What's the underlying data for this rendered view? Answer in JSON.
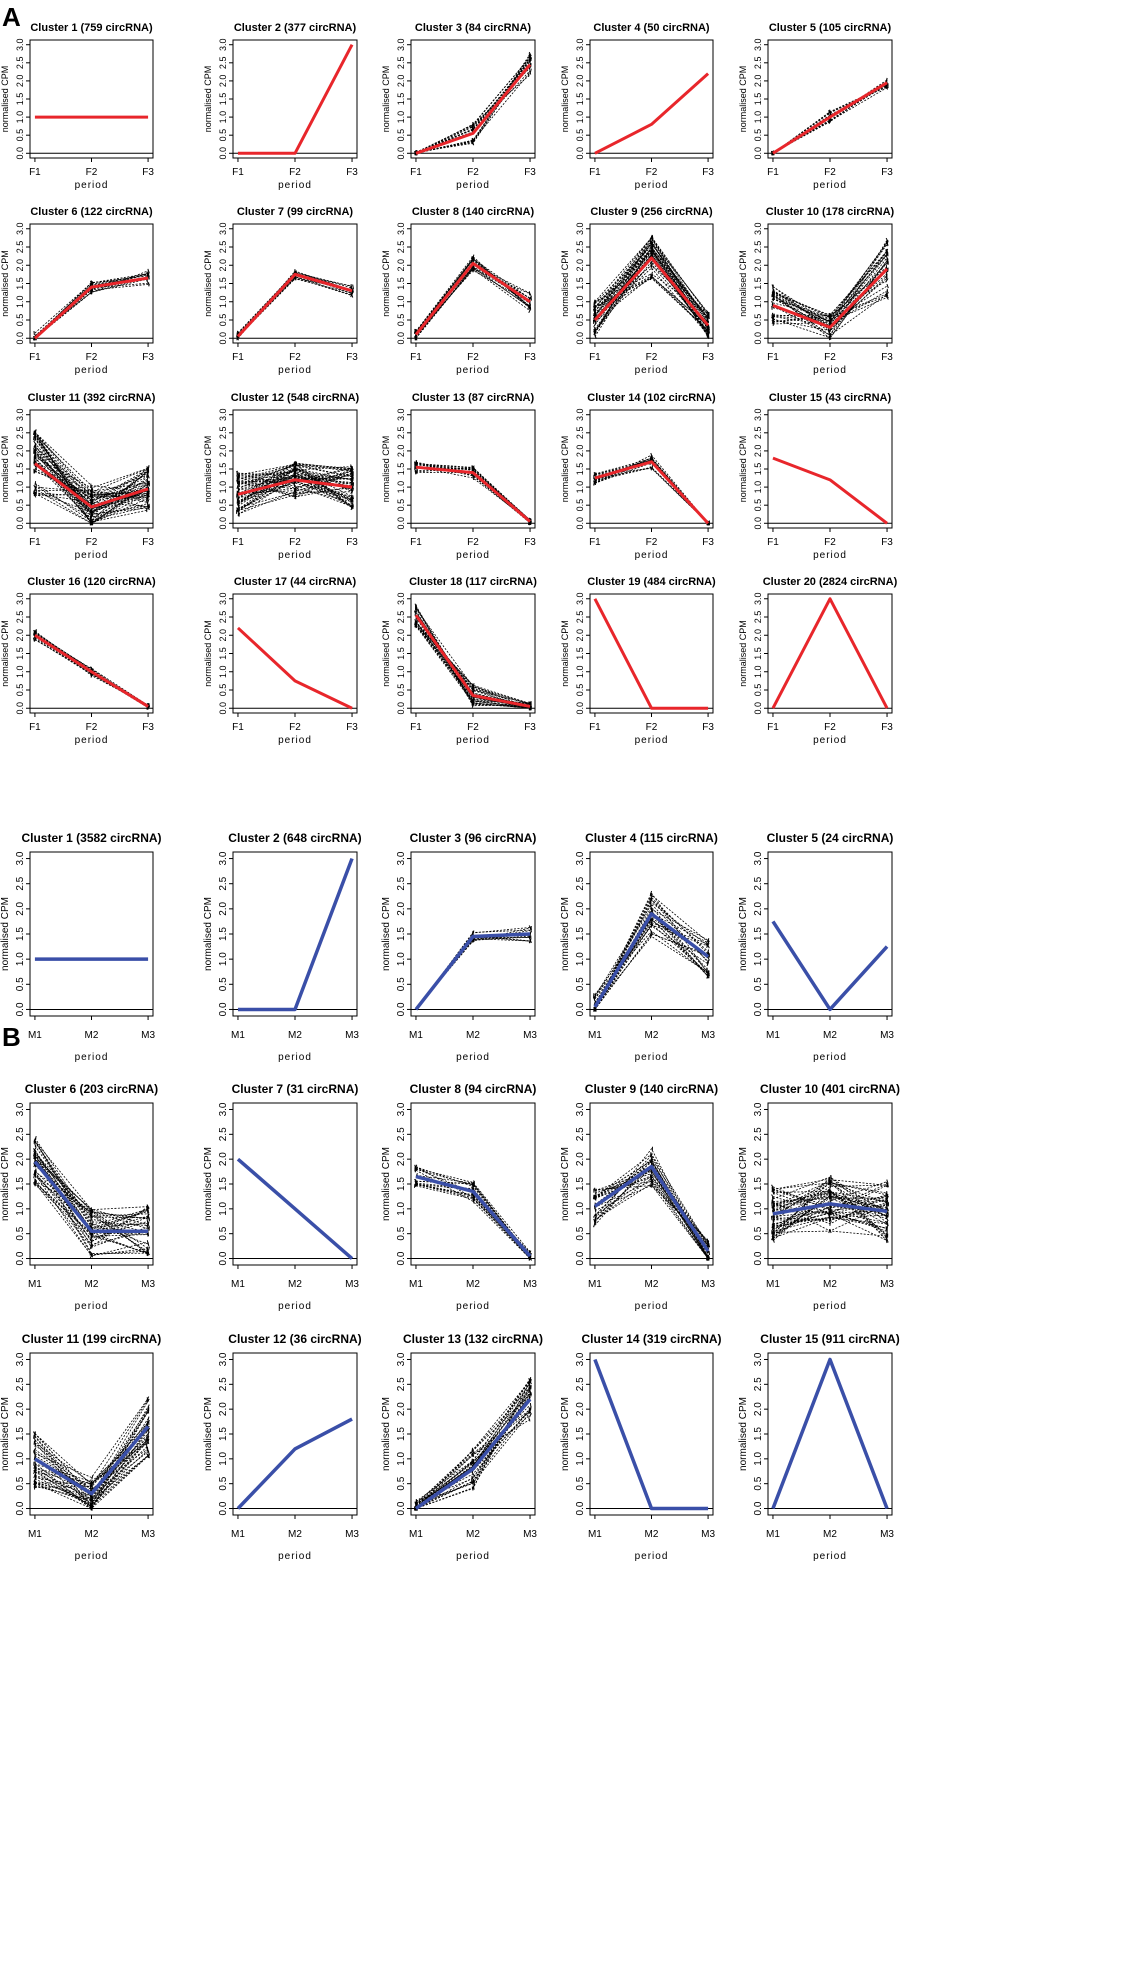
{
  "chart_data": [
    {
      "type": "line",
      "panel": "A",
      "x": [
        "F1",
        "F2",
        "F3"
      ],
      "xlabel": "period",
      "ylabel": "normalised CPM",
      "ylim": [
        0,
        3
      ],
      "yticks": [
        "0.0",
        "0.5",
        "1.0",
        "1.5",
        "2.0",
        "2.5",
        "3.0"
      ],
      "mean_color": "#e8262b",
      "profile_color": "#000000",
      "clusters": [
        {
          "title": "Cluster 1 (759 circRNA)",
          "mean": [
            1.0,
            1.0,
            1.0
          ],
          "spread": [
            0,
            0,
            0
          ],
          "jitter": 0,
          "n": 0
        },
        {
          "title": "Cluster 2 (377 circRNA)",
          "mean": [
            0.0,
            0.0,
            3.0
          ],
          "spread": [
            0,
            0,
            0
          ],
          "jitter": 0,
          "n": 0
        },
        {
          "title": "Cluster 3 (84 circRNA)",
          "mean": [
            0.0,
            0.55,
            2.45
          ],
          "spread": [
            0.03,
            0.3,
            0.3
          ],
          "jitter": 0.25,
          "n": 16
        },
        {
          "title": "Cluster 4 (50 circRNA)",
          "mean": [
            0.0,
            0.8,
            2.2
          ],
          "spread": [
            0,
            0,
            0
          ],
          "jitter": 0,
          "n": 0
        },
        {
          "title": "Cluster 5 (105 circRNA)",
          "mean": [
            0.0,
            1.0,
            1.95
          ],
          "spread": [
            0.03,
            0.15,
            0.15
          ],
          "jitter": 0.15,
          "n": 12
        },
        {
          "title": "Cluster 6 (122 circRNA)",
          "mean": [
            0.0,
            1.4,
            1.65
          ],
          "spread": [
            0.15,
            0.15,
            0.2
          ],
          "jitter": 0.2,
          "n": 14
        },
        {
          "title": "Cluster 7 (99 circRNA)",
          "mean": [
            0.05,
            1.75,
            1.3
          ],
          "spread": [
            0.1,
            0.12,
            0.15
          ],
          "jitter": 0.15,
          "n": 12
        },
        {
          "title": "Cluster 8 (140 circRNA)",
          "mean": [
            0.1,
            2.05,
            1.0
          ],
          "spread": [
            0.15,
            0.2,
            0.25
          ],
          "jitter": 0.2,
          "n": 16
        },
        {
          "title": "Cluster 9 (256 circRNA)",
          "mean": [
            0.5,
            2.2,
            0.35
          ],
          "spread": [
            0.5,
            0.6,
            0.35
          ],
          "jitter": 0.3,
          "n": 40
        },
        {
          "title": "Cluster 10 (178 circRNA)",
          "mean": [
            0.9,
            0.3,
            1.9
          ],
          "spread": [
            0.55,
            0.35,
            0.8
          ],
          "jitter": 0.35,
          "n": 30
        },
        {
          "title": "Cluster 11 (392 circRNA)",
          "mean": [
            1.65,
            0.45,
            0.95
          ],
          "spread": [
            0.9,
            0.6,
            0.6
          ],
          "jitter": 0.4,
          "n": 50
        },
        {
          "title": "Cluster 12 (548 circRNA)",
          "mean": [
            0.8,
            1.2,
            1.0
          ],
          "spread": [
            0.6,
            0.5,
            0.6
          ],
          "jitter": 0.4,
          "n": 50
        },
        {
          "title": "Cluster 13 (87 circRNA)",
          "mean": [
            1.55,
            1.4,
            0.05
          ],
          "spread": [
            0.15,
            0.15,
            0.05
          ],
          "jitter": 0.15,
          "n": 14
        },
        {
          "title": "Cluster 14 (102 circRNA)",
          "mean": [
            1.25,
            1.7,
            0.0
          ],
          "spread": [
            0.15,
            0.2,
            0.03
          ],
          "jitter": 0.15,
          "n": 14
        },
        {
          "title": "Cluster 15 (43 circRNA)",
          "mean": [
            1.8,
            1.2,
            0.0
          ],
          "spread": [
            0,
            0,
            0
          ],
          "jitter": 0,
          "n": 0
        },
        {
          "title": "Cluster 16 (120 circRNA)",
          "mean": [
            2.0,
            1.0,
            0.05
          ],
          "spread": [
            0.12,
            0.12,
            0.04
          ],
          "jitter": 0.15,
          "n": 14
        },
        {
          "title": "Cluster 17 (44 circRNA)",
          "mean": [
            2.2,
            0.75,
            0.0
          ],
          "spread": [
            0,
            0,
            0
          ],
          "jitter": 0,
          "n": 0
        },
        {
          "title": "Cluster 18 (117 circRNA)",
          "mean": [
            2.55,
            0.35,
            0.05
          ],
          "spread": [
            0.3,
            0.3,
            0.1
          ],
          "jitter": 0.3,
          "n": 24
        },
        {
          "title": "Cluster 19 (484 circRNA)",
          "mean": [
            3.0,
            0.0,
            0.0
          ],
          "spread": [
            0,
            0,
            0
          ],
          "jitter": 0,
          "n": 0
        },
        {
          "title": "Cluster 20 (2824 circRNA)",
          "mean": [
            0.0,
            3.0,
            0.0
          ],
          "spread": [
            0,
            0,
            0
          ],
          "jitter": 0,
          "n": 0
        }
      ]
    },
    {
      "type": "line",
      "panel": "B",
      "x": [
        "M1",
        "M2",
        "M3"
      ],
      "xlabel": "period",
      "ylabel": "normalised CPM",
      "ylim": [
        0,
        3
      ],
      "yticks": [
        "0.0",
        "0.5",
        "1.0",
        "1.5",
        "2.0",
        "2.5",
        "3.0"
      ],
      "mean_color": "#3a4fa8",
      "profile_color": "#000000",
      "clusters": [
        {
          "title": "Cluster 1 (3582 circRNA)",
          "mean": [
            1.0,
            1.0,
            1.0
          ],
          "spread": [
            0,
            0,
            0
          ],
          "jitter": 0,
          "n": 0
        },
        {
          "title": "Cluster 2 (648 circRNA)",
          "mean": [
            0.0,
            0.0,
            3.0
          ],
          "spread": [
            0,
            0,
            0
          ],
          "jitter": 0,
          "n": 0
        },
        {
          "title": "Cluster 3 (96 circRNA)",
          "mean": [
            0.0,
            1.45,
            1.5
          ],
          "spread": [
            0.02,
            0.12,
            0.15
          ],
          "jitter": 0.15,
          "n": 12
        },
        {
          "title": "Cluster 4 (115 circRNA)",
          "mean": [
            0.05,
            1.9,
            1.05
          ],
          "spread": [
            0.25,
            0.45,
            0.4
          ],
          "jitter": 0.3,
          "n": 26
        },
        {
          "title": "Cluster 5 (24 circRNA)",
          "mean": [
            1.75,
            0.0,
            1.25
          ],
          "spread": [
            0,
            0,
            0
          ],
          "jitter": 0,
          "n": 0
        },
        {
          "title": "Cluster 6 (203 circRNA)",
          "mean": [
            1.95,
            0.55,
            0.55
          ],
          "spread": [
            0.5,
            0.5,
            0.5
          ],
          "jitter": 0.35,
          "n": 36
        },
        {
          "title": "Cluster 7 (31 circRNA)",
          "mean": [
            2.0,
            1.0,
            0.0
          ],
          "spread": [
            0,
            0,
            0
          ],
          "jitter": 0,
          "n": 0
        },
        {
          "title": "Cluster 8 (94 circRNA)",
          "mean": [
            1.65,
            1.35,
            0.05
          ],
          "spread": [
            0.2,
            0.2,
            0.08
          ],
          "jitter": 0.2,
          "n": 16
        },
        {
          "title": "Cluster 9 (140 circRNA)",
          "mean": [
            1.05,
            1.85,
            0.15
          ],
          "spread": [
            0.4,
            0.4,
            0.25
          ],
          "jitter": 0.3,
          "n": 26
        },
        {
          "title": "Cluster 10 (401 circRNA)",
          "mean": [
            0.9,
            1.1,
            0.95
          ],
          "spread": [
            0.55,
            0.55,
            0.6
          ],
          "jitter": 0.4,
          "n": 48
        },
        {
          "title": "Cluster 11 (199 circRNA)",
          "mean": [
            1.0,
            0.3,
            1.65
          ],
          "spread": [
            0.6,
            0.35,
            0.6
          ],
          "jitter": 0.35,
          "n": 36
        },
        {
          "title": "Cluster 12 (36 circRNA)",
          "mean": [
            0.0,
            1.2,
            1.8
          ],
          "spread": [
            0,
            0,
            0
          ],
          "jitter": 0,
          "n": 0
        },
        {
          "title": "Cluster 13 (132 circRNA)",
          "mean": [
            0.0,
            0.8,
            2.2
          ],
          "spread": [
            0.15,
            0.4,
            0.45
          ],
          "jitter": 0.3,
          "n": 28
        },
        {
          "title": "Cluster 14 (319 circRNA)",
          "mean": [
            3.0,
            0.0,
            0.0
          ],
          "spread": [
            0,
            0,
            0
          ],
          "jitter": 0,
          "n": 0
        },
        {
          "title": "Cluster 15 (911 circRNA)",
          "mean": [
            0.0,
            3.0,
            0.0
          ],
          "spread": [
            0,
            0,
            0
          ],
          "jitter": 0,
          "n": 0
        }
      ]
    }
  ],
  "figure": {
    "panel_labels": [
      "A",
      "B"
    ]
  }
}
